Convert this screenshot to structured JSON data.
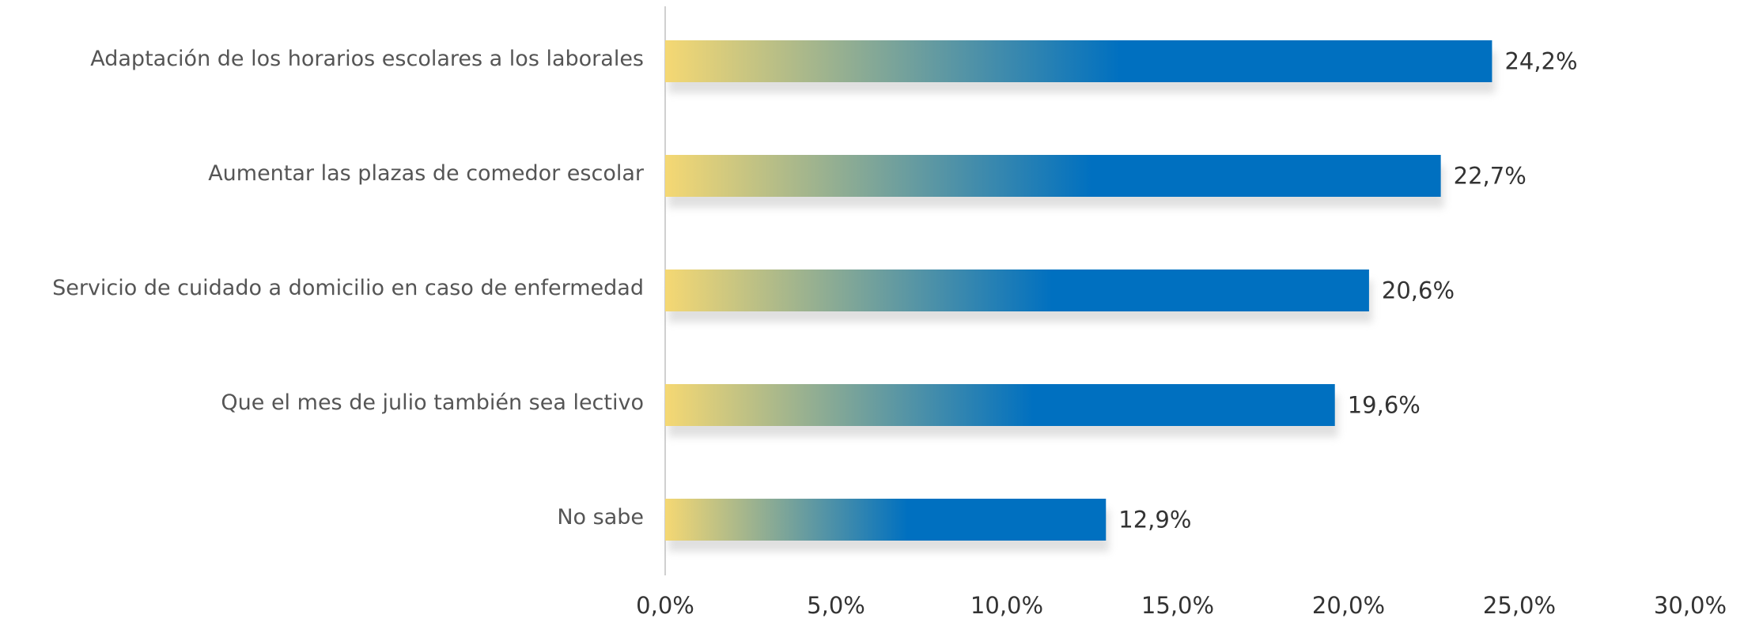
{
  "chart_data": {
    "type": "hbar",
    "categories": [
      "Adaptación de los horarios escolares a los laborales",
      "Aumentar las plazas de comedor escolar",
      "Servicio de cuidado a domicilio en caso de enfermedad",
      "Que el mes de julio también sea lectivo",
      "No sabe"
    ],
    "values": [
      24.2,
      22.7,
      20.6,
      19.6,
      12.9
    ],
    "value_labels": [
      "24,2%",
      "22,7%",
      "20,6%",
      "19,6%",
      "12,9%"
    ],
    "color": "#0070c0",
    "gradient_color": "#f5d873",
    "xlim": [
      0,
      30
    ],
    "xticks": [
      {
        "value": 0,
        "label": "0,0%"
      },
      {
        "value": 5,
        "label": "5,0%"
      },
      {
        "value": 10,
        "label": "10,0%"
      },
      {
        "value": 15,
        "label": "15,0%"
      },
      {
        "value": 20,
        "label": "20,0%"
      },
      {
        "value": 25,
        "label": "25,0%"
      },
      {
        "value": 30,
        "label": "30,0%"
      }
    ]
  }
}
